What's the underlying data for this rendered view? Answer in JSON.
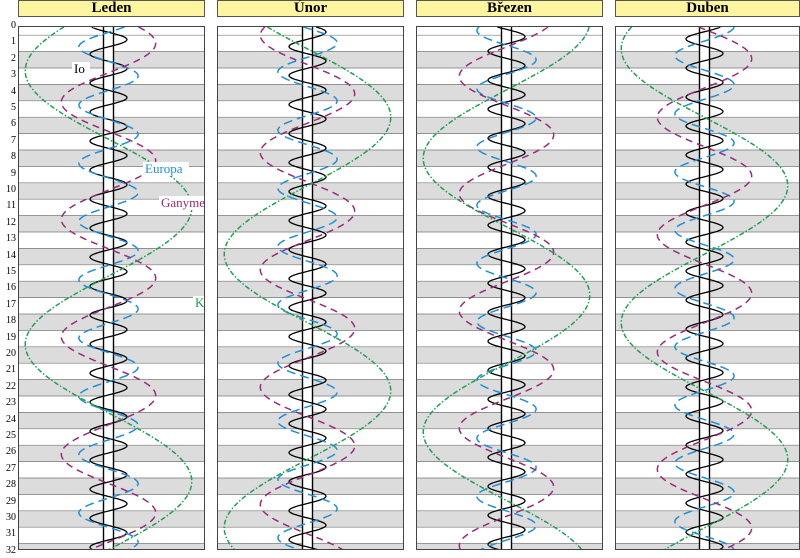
{
  "months": [
    "Leden",
    "Únor",
    "Březen",
    "Duben"
  ],
  "day_labels": [
    "0",
    "1",
    "2",
    "3",
    "4",
    "5",
    "6",
    "7",
    "8",
    "9",
    "10",
    "11",
    "12",
    "13",
    "14",
    "15",
    "16",
    "17",
    "18",
    "19",
    "20",
    "21",
    "22",
    "23",
    "24",
    "25",
    "26",
    "27",
    "28",
    "29",
    "30",
    "31",
    "32"
  ],
  "moons": [
    {
      "name": "Io",
      "period_days": 1.769,
      "amplitude": 1.0,
      "color": "#000000",
      "dash": "solid"
    },
    {
      "name": "Europa",
      "period_days": 3.551,
      "amplitude": 1.6,
      "color": "#1f8fd6",
      "dash": "long-dash"
    },
    {
      "name": "Ganymed",
      "period_days": 7.155,
      "amplitude": 2.55,
      "color": "#9a2b7a",
      "dash": "dash"
    },
    {
      "name": "Kallisto",
      "period_days": 16.689,
      "amplitude": 4.5,
      "color": "#20a050",
      "dash": "dash-dot"
    }
  ],
  "labels": {
    "io": "Io",
    "europa": "Europa",
    "ganymed": "Ganymed",
    "kallisto": "Kallisto"
  },
  "colors": {
    "header_bg": "#fdf5a0",
    "stripe": "#dcdcdc",
    "planet": "#000000"
  }
}
